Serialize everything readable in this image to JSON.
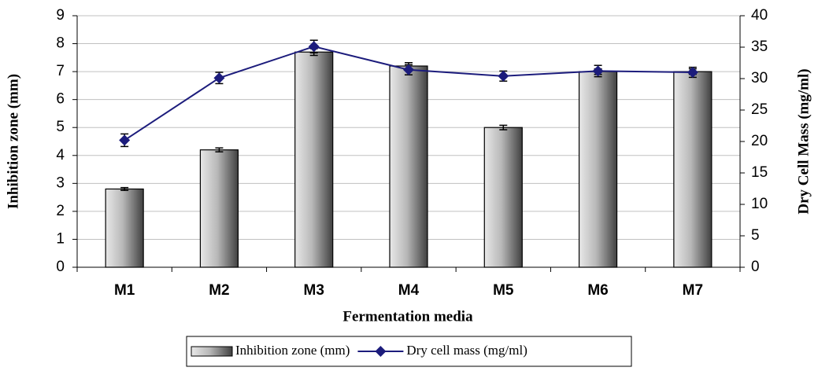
{
  "chart_data": {
    "type": "bar",
    "categories": [
      "M1",
      "M2",
      "M3",
      "M4",
      "M5",
      "M6",
      "M7"
    ],
    "x_label": "Fermentation media",
    "y_label": "Inhibition zone (mm)",
    "y2_label": "Dry Cell Mass (mg/ml)",
    "ylim": [
      0,
      9
    ],
    "yticks": [
      0,
      1,
      2,
      3,
      4,
      5,
      6,
      7,
      8,
      9
    ],
    "y2lim": [
      0,
      40
    ],
    "y2ticks": [
      0,
      5,
      10,
      15,
      20,
      25,
      30,
      35,
      40
    ],
    "grid": true,
    "legend": "bottom",
    "series": [
      {
        "name": "Inhibition zone (mm)",
        "type": "bar",
        "color": "#a0a0a0",
        "values": [
          2.8,
          4.2,
          7.7,
          7.2,
          5.0,
          7.0,
          7.0
        ],
        "errors": [
          0.05,
          0.07,
          0.12,
          0.12,
          0.08,
          0.1,
          0.1
        ]
      },
      {
        "name": "Dry cell mass (mg/ml)",
        "type": "line",
        "axis": "y2",
        "color": "#1c1c7c",
        "values": [
          20.2,
          30.1,
          35.1,
          31.4,
          30.4,
          31.2,
          31.0
        ],
        "errors": [
          1.0,
          0.9,
          1.0,
          0.8,
          0.8,
          0.9,
          0.8
        ]
      }
    ]
  }
}
